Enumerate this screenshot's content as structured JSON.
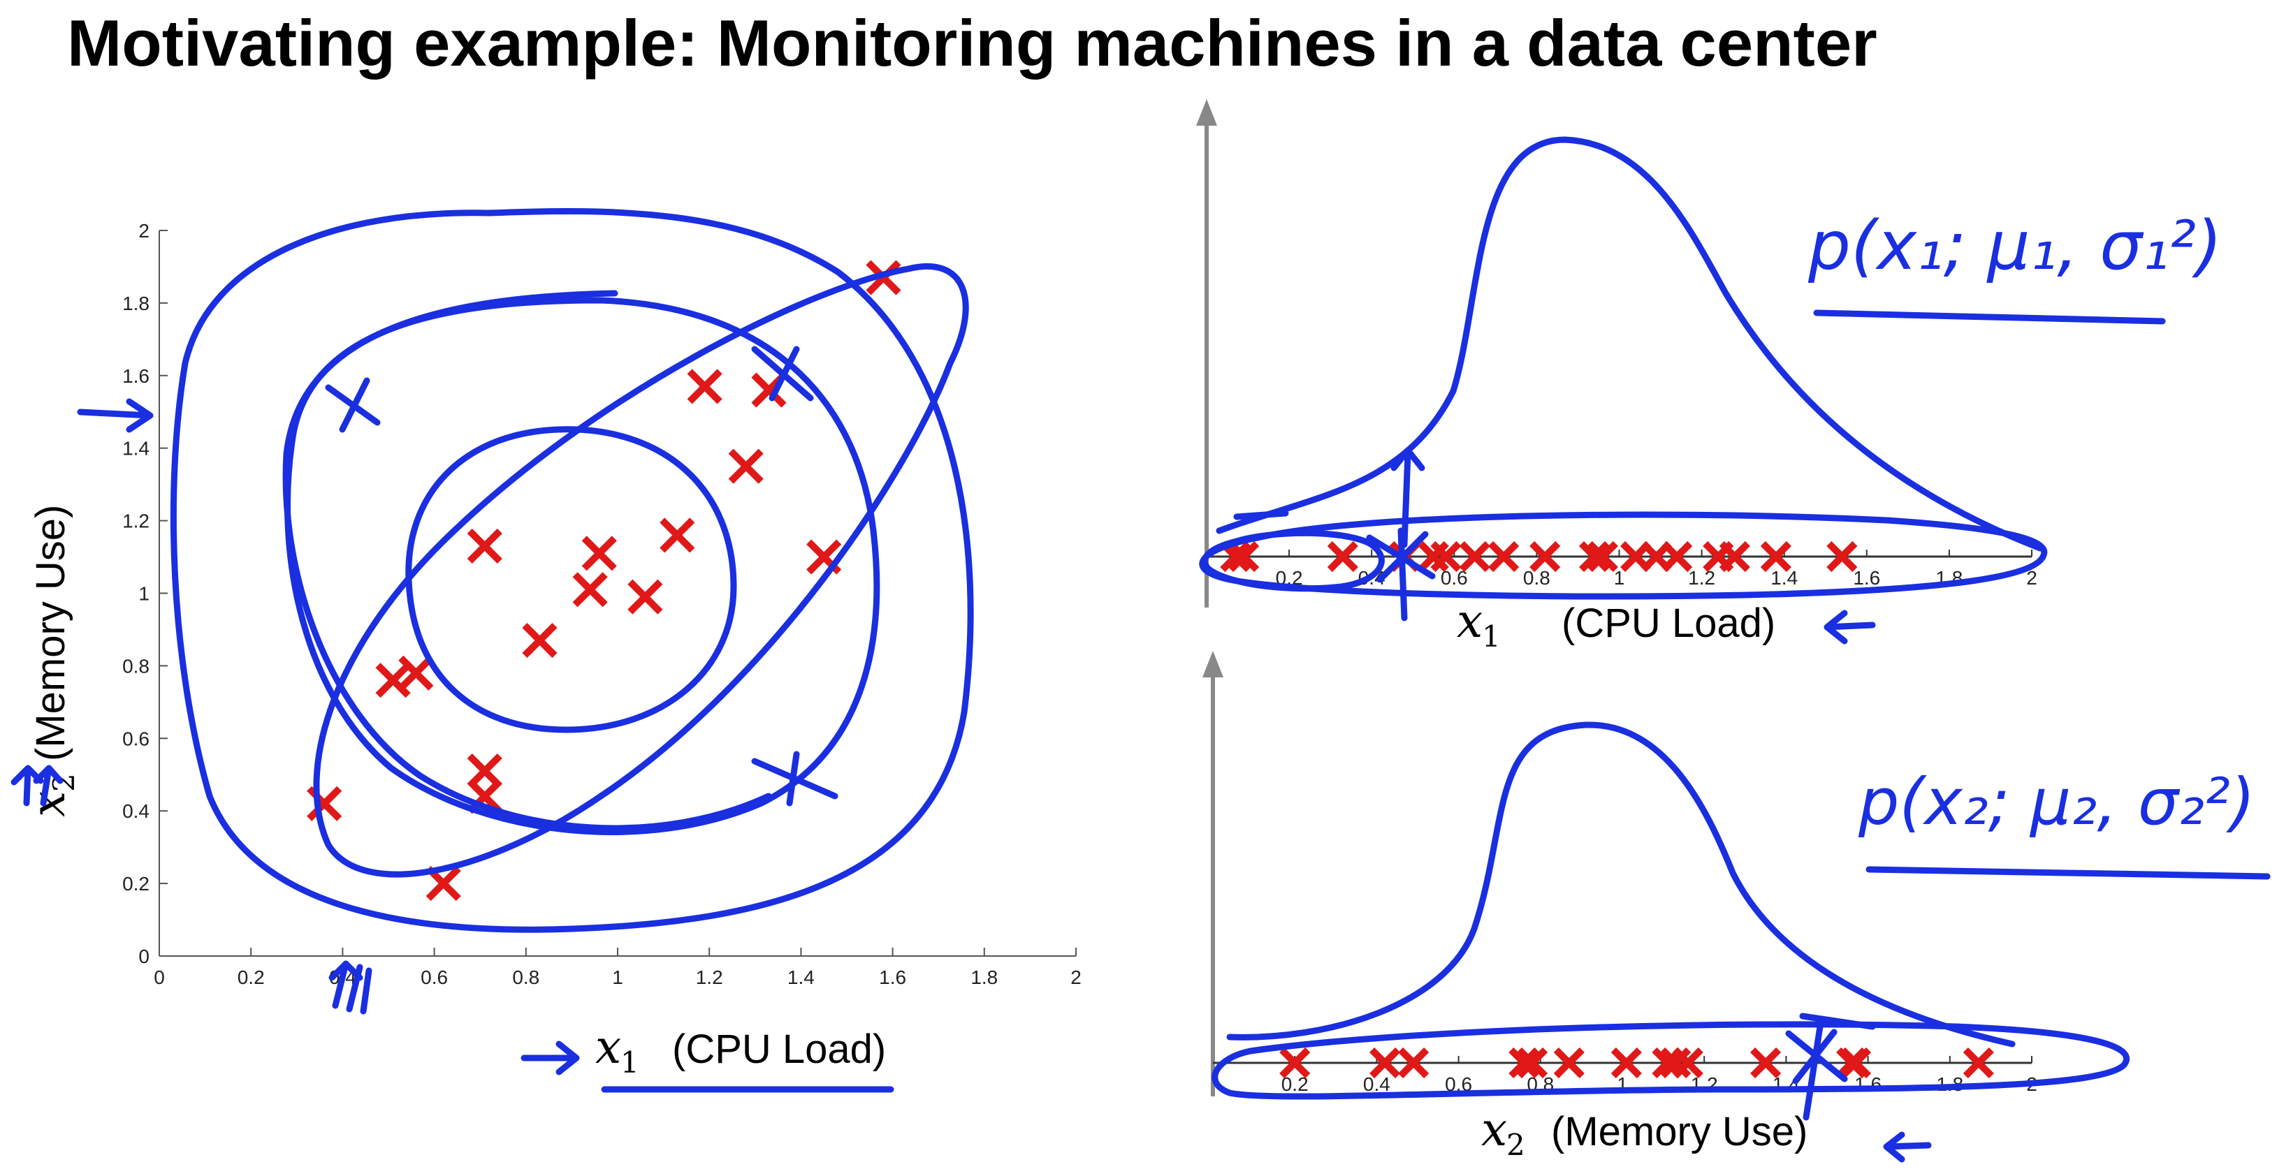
{
  "title": "Motivating example: Monitoring machines in a data center",
  "chart_data": [
    {
      "type": "scatter",
      "xlim": [
        0,
        2
      ],
      "ylim": [
        0,
        2
      ],
      "x_ticks": [
        "0",
        "0.2",
        "0.4",
        "0.6",
        "0.8",
        "1",
        "1.2",
        "1.4",
        "1.6",
        "1.8",
        "2"
      ],
      "y_ticks": [
        "0",
        "0.2",
        "0.4",
        "0.6",
        "0.8",
        "1",
        "1.2",
        "1.4",
        "1.6",
        "1.8",
        "2"
      ],
      "xlabel_math": "x",
      "xlabel_sub": "1",
      "xlabel_text": "(CPU Load)",
      "ylabel_math": "x",
      "ylabel_sub": "2",
      "ylabel_text": "(Memory Use)",
      "marker_color": "#e01818",
      "points": [
        [
          0.36,
          0.42
        ],
        [
          0.51,
          0.76
        ],
        [
          0.56,
          0.78
        ],
        [
          0.62,
          0.2
        ],
        [
          0.71,
          0.51
        ],
        [
          0.71,
          0.44
        ],
        [
          0.71,
          1.13
        ],
        [
          0.83,
          0.87
        ],
        [
          0.94,
          1.01
        ],
        [
          0.96,
          1.11
        ],
        [
          1.06,
          0.99
        ],
        [
          1.13,
          1.16
        ],
        [
          1.19,
          1.57
        ],
        [
          1.28,
          1.35
        ],
        [
          1.33,
          1.56
        ],
        [
          1.45,
          1.1
        ],
        [
          1.58,
          1.87
        ]
      ]
    },
    {
      "type": "scatter",
      "xlim": [
        0,
        2
      ],
      "x_ticks": [
        "0.2",
        "0.4",
        "0.6",
        "0.8",
        "1",
        "1.2",
        "1.4",
        "1.6",
        "1.8",
        "2"
      ],
      "xlabel_math": "x",
      "xlabel_sub": "1",
      "xlabel_text": "(CPU Load)",
      "marker_color": "#e01818",
      "x": [
        0.07,
        0.09,
        0.33,
        0.48,
        0.55,
        0.58,
        0.65,
        0.72,
        0.82,
        0.94,
        0.96,
        1.04,
        1.09,
        1.14,
        1.24,
        1.28,
        1.38,
        1.54
      ]
    },
    {
      "type": "scatter",
      "xlim": [
        0,
        2
      ],
      "x_ticks": [
        "0.2",
        "0.4",
        "0.6",
        "0.8",
        "1",
        "1.2",
        "1.4",
        "1.6",
        "1.8",
        "2"
      ],
      "xlabel_math": "x",
      "xlabel_sub": "2",
      "xlabel_text": "(Memory Use)",
      "marker_color": "#e01818",
      "x": [
        0.2,
        0.42,
        0.49,
        0.76,
        0.78,
        0.87,
        1.01,
        1.11,
        1.13,
        1.16,
        1.35,
        1.56,
        1.57,
        1.87
      ]
    }
  ],
  "annotations": {
    "top_formula": "p(x₁; μ₁, σ₁²)",
    "bottom_formula": "p(x₂; μ₂, σ₂²)",
    "ink_color": "#1a2fe0"
  }
}
